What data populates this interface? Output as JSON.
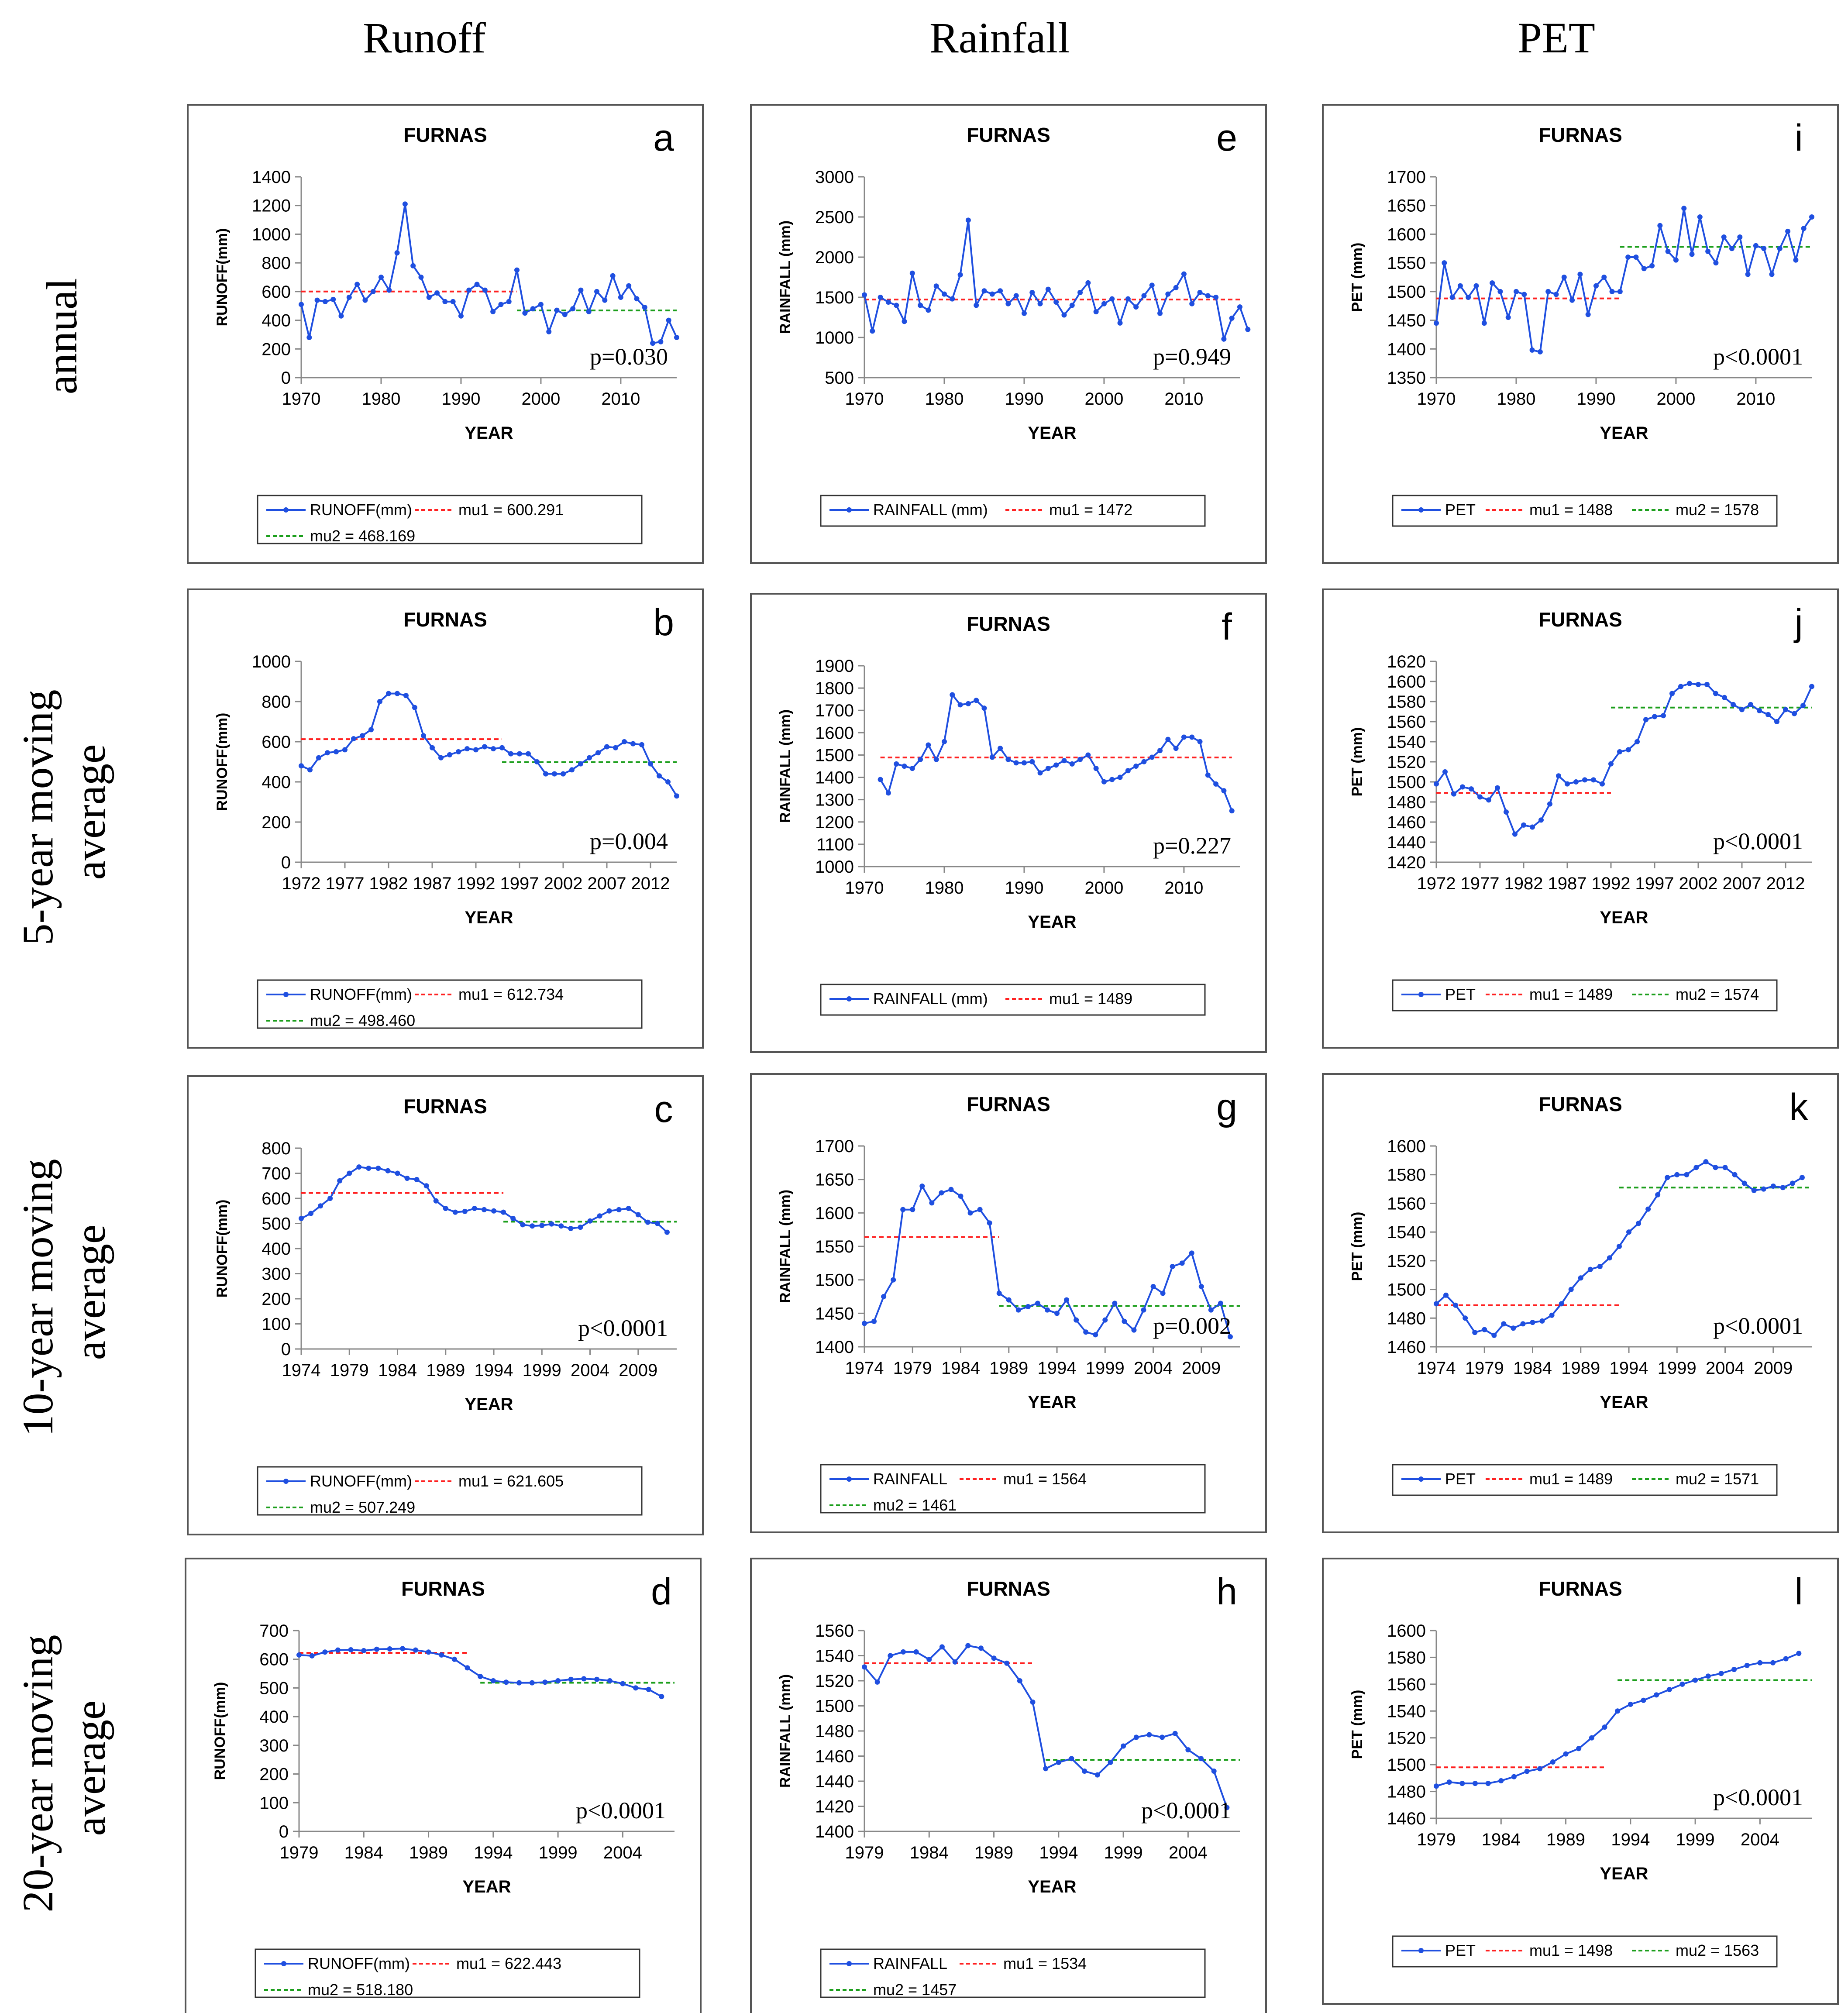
{
  "columns": [
    "Runoff",
    "Rainfall",
    "PET"
  ],
  "rows": [
    "annual",
    [
      "5-year moving",
      "average"
    ],
    [
      "10-year moving",
      "average"
    ],
    [
      "20-year moving",
      "average"
    ]
  ],
  "colors": {
    "series": "#1f4fe0",
    "mu1": "#ff2020",
    "mu2": "#1b9e1b",
    "frame": "#555555",
    "axis": "#888888"
  },
  "chart_data": [
    {
      "id": "a",
      "type": "line",
      "title": "FURNAS",
      "ylabel": "RUNOFF(mm)",
      "xlabel": "YEAR",
      "ylim": [
        0,
        1400
      ],
      "yticks": [
        0,
        200,
        400,
        600,
        800,
        1000,
        1200,
        1400
      ],
      "xlim": [
        1970,
        2017
      ],
      "xticks": [
        1970,
        1980,
        1990,
        2000,
        2010
      ],
      "x_start": 1970,
      "values": [
        510,
        280,
        540,
        530,
        545,
        430,
        560,
        650,
        540,
        600,
        700,
        610,
        870,
        1210,
        780,
        700,
        560,
        590,
        530,
        530,
        430,
        610,
        650,
        610,
        460,
        510,
        530,
        750,
        450,
        480,
        510,
        320,
        470,
        440,
        480,
        610,
        460,
        600,
        540,
        710,
        560,
        640,
        550,
        490,
        240,
        250,
        400,
        280
      ],
      "mu1": {
        "value": 600.291,
        "from": 1970,
        "to": 1997
      },
      "mu2": {
        "value": 468.169,
        "from": 1997,
        "to": 2017
      },
      "p": "p=0.030",
      "legend": [
        "RUNOFF(mm)",
        "mu1 = 600.291",
        "mu2 = 468.169"
      ]
    },
    {
      "id": "e",
      "type": "line",
      "title": "FURNAS",
      "ylabel": "RAINFALL (mm)",
      "xlabel": "YEAR",
      "ylim": [
        500,
        3000
      ],
      "yticks": [
        500,
        1000,
        1500,
        2000,
        2500,
        3000
      ],
      "xlim": [
        1970,
        2017
      ],
      "xticks": [
        1970,
        1980,
        1990,
        2000,
        2010
      ],
      "x_start": 1970,
      "values": [
        1530,
        1080,
        1500,
        1440,
        1400,
        1200,
        1800,
        1400,
        1340,
        1640,
        1540,
        1480,
        1780,
        2460,
        1400,
        1580,
        1540,
        1580,
        1420,
        1520,
        1300,
        1560,
        1420,
        1600,
        1440,
        1280,
        1400,
        1560,
        1680,
        1320,
        1420,
        1480,
        1180,
        1480,
        1380,
        1520,
        1650,
        1300,
        1540,
        1620,
        1790,
        1420,
        1560,
        1520,
        1500,
        980,
        1240,
        1380,
        1100
      ],
      "mu1": {
        "value": 1472,
        "from": 1970,
        "to": 2017
      },
      "mu2": null,
      "p": "p=0.949",
      "legend": [
        "RAINFALL (mm)",
        "mu1 = 1472"
      ]
    },
    {
      "id": "i",
      "type": "line",
      "title": "FURNAS",
      "ylabel": "PET (mm)",
      "xlabel": "YEAR",
      "ylim": [
        1350,
        1700
      ],
      "yticks": [
        1350,
        1400,
        1450,
        1500,
        1550,
        1600,
        1650,
        1700
      ],
      "xlim": [
        1970,
        2017
      ],
      "xticks": [
        1970,
        1980,
        1990,
        2000,
        2010
      ],
      "x_start": 1970,
      "values": [
        1445,
        1550,
        1490,
        1510,
        1490,
        1510,
        1445,
        1515,
        1500,
        1455,
        1500,
        1495,
        1398,
        1395,
        1500,
        1495,
        1525,
        1485,
        1530,
        1460,
        1510,
        1525,
        1500,
        1500,
        1560,
        1560,
        1540,
        1545,
        1615,
        1570,
        1555,
        1645,
        1565,
        1630,
        1570,
        1550,
        1595,
        1575,
        1595,
        1530,
        1580,
        1575,
        1530,
        1575,
        1605,
        1555,
        1610,
        1630
      ],
      "mu1": {
        "value": 1488,
        "from": 1970,
        "to": 1993
      },
      "mu2": {
        "value": 1578,
        "from": 1993,
        "to": 2017
      },
      "p": "p<0.0001",
      "legend": [
        "PET",
        "mu1 = 1488",
        "mu2 = 1578"
      ]
    },
    {
      "id": "b",
      "type": "line",
      "title": "FURNAS",
      "ylabel": "RUNOFF(mm)",
      "xlabel": "YEAR",
      "ylim": [
        0,
        1000
      ],
      "yticks": [
        0,
        200,
        400,
        600,
        800,
        1000
      ],
      "xlim": [
        1972,
        2015
      ],
      "xticks": [
        1972,
        1977,
        1982,
        1987,
        1992,
        1997,
        2002,
        2007,
        2012
      ],
      "x_start": 1972,
      "values": [
        480,
        460,
        520,
        545,
        550,
        560,
        615,
        630,
        660,
        800,
        840,
        840,
        830,
        770,
        630,
        570,
        520,
        535,
        550,
        565,
        560,
        575,
        565,
        570,
        540,
        540,
        540,
        500,
        440,
        440,
        440,
        460,
        490,
        520,
        545,
        575,
        570,
        600,
        590,
        585,
        490,
        430,
        400,
        330
      ],
      "mu1": {
        "value": 612.734,
        "from": 1972,
        "to": 1995
      },
      "mu2": {
        "value": 498.46,
        "from": 1995,
        "to": 2015
      },
      "p": "p=0.004",
      "legend": [
        "RUNOFF(mm)",
        "mu1 = 612.734",
        "mu2 = 498.460"
      ]
    },
    {
      "id": "f",
      "type": "line",
      "title": "FURNAS",
      "ylabel": "RAINFALL (mm)",
      "xlabel": "YEAR",
      "ylim": [
        1000,
        1900
      ],
      "yticks": [
        1000,
        1100,
        1200,
        1300,
        1400,
        1500,
        1600,
        1700,
        1800,
        1900
      ],
      "xlim": [
        1970,
        2017
      ],
      "xticks": [
        1970,
        1980,
        1990,
        2000,
        2010
      ],
      "x_start": 1972,
      "values": [
        1390,
        1330,
        1460,
        1450,
        1440,
        1480,
        1545,
        1480,
        1560,
        1770,
        1725,
        1730,
        1745,
        1710,
        1490,
        1530,
        1480,
        1465,
        1465,
        1470,
        1420,
        1440,
        1455,
        1475,
        1460,
        1480,
        1500,
        1440,
        1380,
        1390,
        1400,
        1430,
        1450,
        1470,
        1490,
        1520,
        1570,
        1530,
        1580,
        1580,
        1560,
        1410,
        1370,
        1340,
        1250
      ],
      "mu1": {
        "value": 1489,
        "from": 1972,
        "to": 2016
      },
      "mu2": null,
      "p": "p=0.227",
      "legend": [
        "RAINFALL (mm)",
        "mu1 = 1489"
      ]
    },
    {
      "id": "j",
      "type": "line",
      "title": "FURNAS",
      "ylabel": "PET (mm)",
      "xlabel": "YEAR",
      "ylim": [
        1420,
        1620
      ],
      "yticks": [
        1420,
        1440,
        1460,
        1480,
        1500,
        1520,
        1540,
        1560,
        1580,
        1600,
        1620
      ],
      "xlim": [
        1972,
        2015
      ],
      "xticks": [
        1972,
        1977,
        1982,
        1987,
        1992,
        1997,
        2002,
        2007,
        2012
      ],
      "x_start": 1972,
      "values": [
        1498,
        1510,
        1488,
        1495,
        1493,
        1485,
        1482,
        1494,
        1470,
        1448,
        1457,
        1455,
        1462,
        1478,
        1506,
        1498,
        1500,
        1502,
        1502,
        1498,
        1518,
        1530,
        1532,
        1540,
        1562,
        1565,
        1566,
        1588,
        1595,
        1598,
        1597,
        1597,
        1588,
        1584,
        1577,
        1572,
        1577,
        1571,
        1567,
        1560,
        1572,
        1568,
        1576,
        1595
      ],
      "mu1": {
        "value": 1489,
        "from": 1972,
        "to": 1992
      },
      "mu2": {
        "value": 1574,
        "from": 1992,
        "to": 2015
      },
      "p": "p<0.0001",
      "legend": [
        "PET",
        "mu1 = 1489",
        "mu2 = 1574"
      ]
    },
    {
      "id": "c",
      "type": "line",
      "title": "FURNAS",
      "ylabel": "RUNOFF(mm)",
      "xlabel": "YEAR",
      "ylim": [
        0,
        800
      ],
      "yticks": [
        0,
        100,
        200,
        300,
        400,
        500,
        600,
        700,
        800
      ],
      "xlim": [
        1974,
        2013
      ],
      "xticks": [
        1974,
        1979,
        1984,
        1989,
        1994,
        1999,
        2004,
        2009
      ],
      "x_start": 1974,
      "values": [
        520,
        540,
        570,
        600,
        670,
        700,
        725,
        720,
        720,
        710,
        700,
        680,
        675,
        650,
        590,
        560,
        545,
        548,
        560,
        555,
        550,
        545,
        520,
        495,
        490,
        492,
        498,
        490,
        480,
        485,
        510,
        530,
        550,
        555,
        560,
        535,
        505,
        500,
        465
      ],
      "mu1": {
        "value": 621.605,
        "from": 1974,
        "to": 1995
      },
      "mu2": {
        "value": 507.249,
        "from": 1995,
        "to": 2013
      },
      "p": "p<0.0001",
      "legend": [
        "RUNOFF(mm)",
        "mu1 = 621.605",
        "mu2 = 507.249"
      ]
    },
    {
      "id": "g",
      "type": "line",
      "title": "FURNAS",
      "ylabel": "RAINFALL (mm)",
      "xlabel": "YEAR",
      "ylim": [
        1400,
        1700
      ],
      "yticks": [
        1400,
        1450,
        1500,
        1550,
        1600,
        1650,
        1700
      ],
      "xlim": [
        1974,
        2013
      ],
      "xticks": [
        1974,
        1979,
        1984,
        1989,
        1994,
        1999,
        2004,
        2009
      ],
      "x_start": 1974,
      "values": [
        1435,
        1438,
        1475,
        1500,
        1605,
        1605,
        1640,
        1615,
        1630,
        1635,
        1625,
        1600,
        1605,
        1585,
        1480,
        1470,
        1455,
        1460,
        1465,
        1455,
        1450,
        1470,
        1440,
        1422,
        1418,
        1440,
        1465,
        1438,
        1425,
        1455,
        1490,
        1480,
        1520,
        1525,
        1540,
        1490,
        1455,
        1465,
        1415
      ],
      "mu1": {
        "value": 1564,
        "from": 1974,
        "to": 1988
      },
      "mu2": {
        "value": 1461,
        "from": 1988,
        "to": 2013
      },
      "p": "p=0.002",
      "legend": [
        "RAINFALL",
        "mu1 = 1564",
        "mu2 = 1461"
      ]
    },
    {
      "id": "k",
      "type": "line",
      "title": "FURNAS",
      "ylabel": "PET (mm)",
      "xlabel": "YEAR",
      "ylim": [
        1460,
        1600
      ],
      "yticks": [
        1460,
        1480,
        1500,
        1520,
        1540,
        1560,
        1580,
        1600
      ],
      "xlim": [
        1974,
        2013
      ],
      "xticks": [
        1974,
        1979,
        1984,
        1989,
        1994,
        1999,
        2004,
        2009
      ],
      "x_start": 1974,
      "values": [
        1490,
        1496,
        1489,
        1480,
        1470,
        1472,
        1468,
        1476,
        1473,
        1476,
        1477,
        1478,
        1482,
        1490,
        1500,
        1508,
        1514,
        1516,
        1522,
        1530,
        1540,
        1546,
        1556,
        1566,
        1578,
        1580,
        1580,
        1585,
        1589,
        1585,
        1585,
        1580,
        1574,
        1569,
        1570,
        1572,
        1571,
        1574,
        1578
      ],
      "mu1": {
        "value": 1489,
        "from": 1974,
        "to": 1993
      },
      "mu2": {
        "value": 1571,
        "from": 1993,
        "to": 2013
      },
      "p": "p<0.0001",
      "legend": [
        "PET",
        "mu1 = 1489",
        "mu2 = 1571"
      ]
    },
    {
      "id": "d",
      "type": "line",
      "title": "FURNAS",
      "ylabel": "RUNOFF(mm)",
      "xlabel": "YEAR",
      "ylim": [
        0,
        700
      ],
      "yticks": [
        0,
        100,
        200,
        300,
        400,
        500,
        600,
        700
      ],
      "xlim": [
        1979,
        2008
      ],
      "xticks": [
        1979,
        1984,
        1989,
        1994,
        1999,
        2004
      ],
      "x_start": 1979,
      "values": [
        615,
        612,
        625,
        632,
        633,
        630,
        635,
        636,
        637,
        632,
        625,
        615,
        600,
        570,
        540,
        525,
        520,
        518,
        518,
        520,
        525,
        530,
        532,
        530,
        525,
        515,
        500,
        495,
        470
      ],
      "mu1": {
        "value": 622.443,
        "from": 1979,
        "to": 1992
      },
      "mu2": {
        "value": 518.18,
        "from": 1993,
        "to": 2008
      },
      "p": "p<0.0001",
      "legend": [
        "RUNOFF(mm)",
        "mu1 = 622.443",
        "mu2 = 518.180"
      ]
    },
    {
      "id": "h",
      "type": "line",
      "title": "FURNAS",
      "ylabel": "RAINFALL (mm)",
      "xlabel": "YEAR",
      "ylim": [
        1400,
        1560
      ],
      "yticks": [
        1400,
        1420,
        1440,
        1460,
        1480,
        1500,
        1520,
        1540,
        1560
      ],
      "xlim": [
        1979,
        2008
      ],
      "xticks": [
        1979,
        1984,
        1989,
        1994,
        1999,
        2004
      ],
      "x_start": 1979,
      "values": [
        1531,
        1519,
        1540,
        1543,
        1543,
        1537,
        1547,
        1535,
        1548,
        1546,
        1538,
        1534,
        1520,
        1503,
        1450,
        1455,
        1458,
        1448,
        1445,
        1455,
        1468,
        1475,
        1477,
        1475,
        1478,
        1465,
        1458,
        1448,
        1419
      ],
      "mu1": {
        "value": 1534,
        "from": 1979,
        "to": 1992
      },
      "mu2": {
        "value": 1457,
        "from": 1993,
        "to": 2008
      },
      "p": "p<0.0001",
      "legend": [
        "RAINFALL",
        "mu1 = 1534",
        "mu2 = 1457"
      ]
    },
    {
      "id": "l",
      "type": "line",
      "title": "FURNAS",
      "ylabel": "PET (mm)",
      "xlabel": "YEAR",
      "ylim": [
        1460,
        1600
      ],
      "yticks": [
        1460,
        1480,
        1500,
        1520,
        1540,
        1560,
        1580,
        1600
      ],
      "xlim": [
        1979,
        2008
      ],
      "xticks": [
        1979,
        1984,
        1989,
        1994,
        1999,
        2004
      ],
      "x_start": 1979,
      "values": [
        1484,
        1487,
        1486,
        1486,
        1486,
        1488,
        1491,
        1495,
        1497,
        1502,
        1508,
        1512,
        1520,
        1528,
        1540,
        1545,
        1548,
        1552,
        1556,
        1560,
        1563,
        1566,
        1568,
        1571,
        1574,
        1576,
        1576,
        1579,
        1583
      ],
      "mu1": {
        "value": 1498,
        "from": 1979,
        "to": 1992
      },
      "mu2": {
        "value": 1563,
        "from": 1993,
        "to": 2008
      },
      "p": "p<0.0001",
      "legend": [
        "PET",
        "mu1 = 1498",
        "mu2 = 1563"
      ]
    }
  ]
}
